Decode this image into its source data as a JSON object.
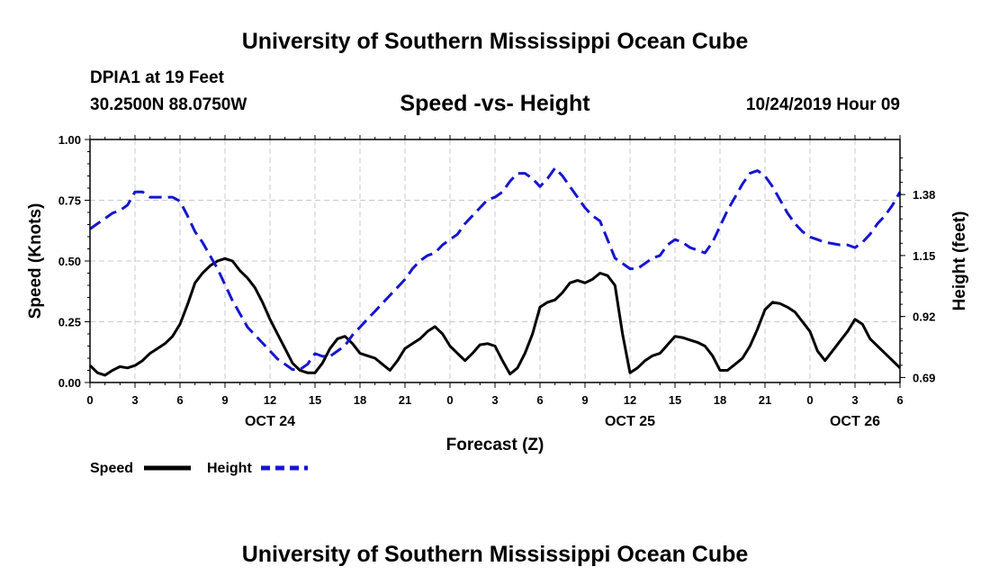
{
  "header": {
    "top_title": "University of Southern Mississippi Ocean Cube",
    "station": "DPIA1 at 19 Feet",
    "coords": "30.2500N 88.0750W",
    "timestamp": "10/24/2019 Hour 09"
  },
  "footer": {
    "bottom_title": "University of Southern Mississippi Ocean Cube"
  },
  "colors": {
    "speed": "#000000",
    "height": "#1515d0",
    "grid": "#c8c8c8"
  },
  "chart_data": {
    "type": "line",
    "title": "Speed -vs- Height",
    "xlabel": "Forecast (Z)",
    "ylabel": "Speed (Knots)",
    "y2label": "Height (feet)",
    "xlim": [
      0,
      54
    ],
    "ylim": [
      0,
      1.0
    ],
    "y2lim": [
      0.6711,
      1.5875
    ],
    "x_ticks": [
      0,
      3,
      6,
      9,
      12,
      15,
      18,
      21,
      24,
      27,
      30,
      33,
      36,
      39,
      42,
      45,
      48,
      51,
      54
    ],
    "x_tick_labels": [
      "0",
      "3",
      "6",
      "9",
      "12",
      "15",
      "18",
      "21",
      "0",
      "3",
      "6",
      "9",
      "12",
      "15",
      "18",
      "21",
      "0",
      "3",
      "6"
    ],
    "date_labels": [
      {
        "x": 12,
        "label": "OCT 24"
      },
      {
        "x": 36,
        "label": "OCT 25"
      },
      {
        "x": 51,
        "label": "OCT 26"
      }
    ],
    "y_ticks": [
      0.0,
      0.25,
      0.5,
      0.75,
      1.0
    ],
    "y_tick_labels": [
      "0.00",
      "0.25",
      "0.50",
      "0.75",
      "1.00"
    ],
    "y2_ticks": [
      0.69,
      0.92,
      1.15,
      1.38
    ],
    "y2_tick_labels": [
      "0.69",
      "0.92",
      "1.15",
      "1.38"
    ],
    "grid": true,
    "legend_position": "bottom-left",
    "series": [
      {
        "name": "Speed",
        "axis": "left",
        "style": "solid",
        "x": [
          0,
          0.5,
          1,
          1.5,
          2,
          2.5,
          3,
          3.5,
          4,
          4.5,
          5,
          5.5,
          6,
          6.5,
          7,
          7.5,
          8,
          8.5,
          9,
          9.5,
          10,
          10.5,
          11,
          11.5,
          12,
          12.5,
          13,
          13.5,
          14,
          14.5,
          15,
          15.5,
          16,
          16.5,
          17,
          17.5,
          18,
          18.5,
          19,
          19.5,
          20,
          20.5,
          21,
          21.5,
          22,
          22.5,
          23,
          23.5,
          24,
          24.5,
          25,
          25.5,
          26,
          26.5,
          27,
          27.5,
          28,
          28.5,
          29,
          29.5,
          30,
          30.5,
          31,
          31.5,
          32,
          32.5,
          33,
          33.5,
          34,
          34.5,
          35,
          35.5,
          36,
          36.5,
          37,
          37.5,
          38,
          38.5,
          39,
          39.5,
          40,
          40.5,
          41,
          41.5,
          42,
          42.5,
          43,
          43.5,
          44,
          44.5,
          45,
          45.5,
          46,
          46.5,
          47,
          47.5,
          48,
          48.5,
          49,
          49.5,
          50,
          50.5,
          51,
          51.5,
          52,
          52.5,
          53,
          53.5,
          54
        ],
        "values": [
          0.07,
          0.04,
          0.03,
          0.05,
          0.065,
          0.06,
          0.07,
          0.09,
          0.12,
          0.14,
          0.16,
          0.19,
          0.24,
          0.32,
          0.41,
          0.45,
          0.48,
          0.5,
          0.51,
          0.5,
          0.46,
          0.43,
          0.39,
          0.33,
          0.26,
          0.2,
          0.14,
          0.08,
          0.05,
          0.04,
          0.04,
          0.08,
          0.14,
          0.18,
          0.19,
          0.16,
          0.12,
          0.11,
          0.1,
          0.075,
          0.05,
          0.09,
          0.14,
          0.16,
          0.18,
          0.21,
          0.23,
          0.2,
          0.15,
          0.12,
          0.09,
          0.12,
          0.155,
          0.16,
          0.15,
          0.09,
          0.035,
          0.06,
          0.12,
          0.2,
          0.31,
          0.33,
          0.34,
          0.37,
          0.41,
          0.42,
          0.41,
          0.425,
          0.45,
          0.44,
          0.4,
          0.2,
          0.04,
          0.06,
          0.09,
          0.11,
          0.12,
          0.155,
          0.19,
          0.185,
          0.175,
          0.165,
          0.15,
          0.11,
          0.05,
          0.05,
          0.075,
          0.1,
          0.15,
          0.22,
          0.3,
          0.33,
          0.325,
          0.31,
          0.29,
          0.25,
          0.21,
          0.13,
          0.09,
          0.13,
          0.17,
          0.21,
          0.26,
          0.24,
          0.18,
          0.15,
          0.12,
          0.09,
          0.06
        ]
      },
      {
        "name": "Height",
        "axis": "right",
        "style": "dashed",
        "x": [
          0,
          0.5,
          1,
          1.5,
          2,
          2.5,
          3,
          3.5,
          4,
          4.5,
          5,
          5.5,
          6,
          6.5,
          7,
          7.5,
          8,
          8.5,
          9,
          9.5,
          10,
          10.5,
          11,
          11.5,
          12,
          12.5,
          13,
          13.5,
          14,
          14.5,
          15,
          15.5,
          16,
          16.5,
          17,
          17.5,
          18,
          18.5,
          19,
          19.5,
          20,
          20.5,
          21,
          21.5,
          22,
          22.5,
          23,
          23.5,
          24,
          24.5,
          25,
          25.5,
          26,
          26.5,
          27,
          27.5,
          28,
          28.5,
          29,
          29.5,
          30,
          30.5,
          31,
          31.5,
          32,
          32.5,
          33,
          33.5,
          34,
          34.5,
          35,
          35.5,
          36,
          36.5,
          37,
          37.5,
          38,
          38.5,
          39,
          39.5,
          40,
          40.5,
          41,
          41.5,
          42,
          42.5,
          43,
          43.5,
          44,
          44.5,
          45,
          45.5,
          46,
          46.5,
          47,
          47.5,
          48,
          48.5,
          49,
          49.5,
          50,
          50.5,
          51,
          51.5,
          52,
          52.5,
          53,
          53.5,
          54
        ],
        "values": [
          1.25,
          1.27,
          1.29,
          1.31,
          1.32,
          1.34,
          1.39,
          1.39,
          1.37,
          1.37,
          1.37,
          1.37,
          1.355,
          1.3,
          1.24,
          1.2,
          1.15,
          1.1,
          1.04,
          0.98,
          0.93,
          0.88,
          0.85,
          0.82,
          0.79,
          0.76,
          0.74,
          0.72,
          0.72,
          0.74,
          0.78,
          0.77,
          0.77,
          0.79,
          0.81,
          0.85,
          0.88,
          0.91,
          0.94,
          0.97,
          1.0,
          1.03,
          1.06,
          1.1,
          1.13,
          1.15,
          1.16,
          1.19,
          1.21,
          1.23,
          1.27,
          1.3,
          1.33,
          1.36,
          1.37,
          1.39,
          1.43,
          1.46,
          1.46,
          1.44,
          1.41,
          1.44,
          1.48,
          1.45,
          1.41,
          1.37,
          1.33,
          1.3,
          1.28,
          1.21,
          1.14,
          1.12,
          1.1,
          1.1,
          1.12,
          1.14,
          1.15,
          1.19,
          1.21,
          1.2,
          1.18,
          1.17,
          1.16,
          1.2,
          1.26,
          1.32,
          1.37,
          1.42,
          1.46,
          1.47,
          1.45,
          1.41,
          1.36,
          1.31,
          1.27,
          1.24,
          1.22,
          1.21,
          1.2,
          1.195,
          1.19,
          1.19,
          1.18,
          1.2,
          1.23,
          1.27,
          1.3,
          1.34,
          1.39
        ]
      }
    ]
  }
}
